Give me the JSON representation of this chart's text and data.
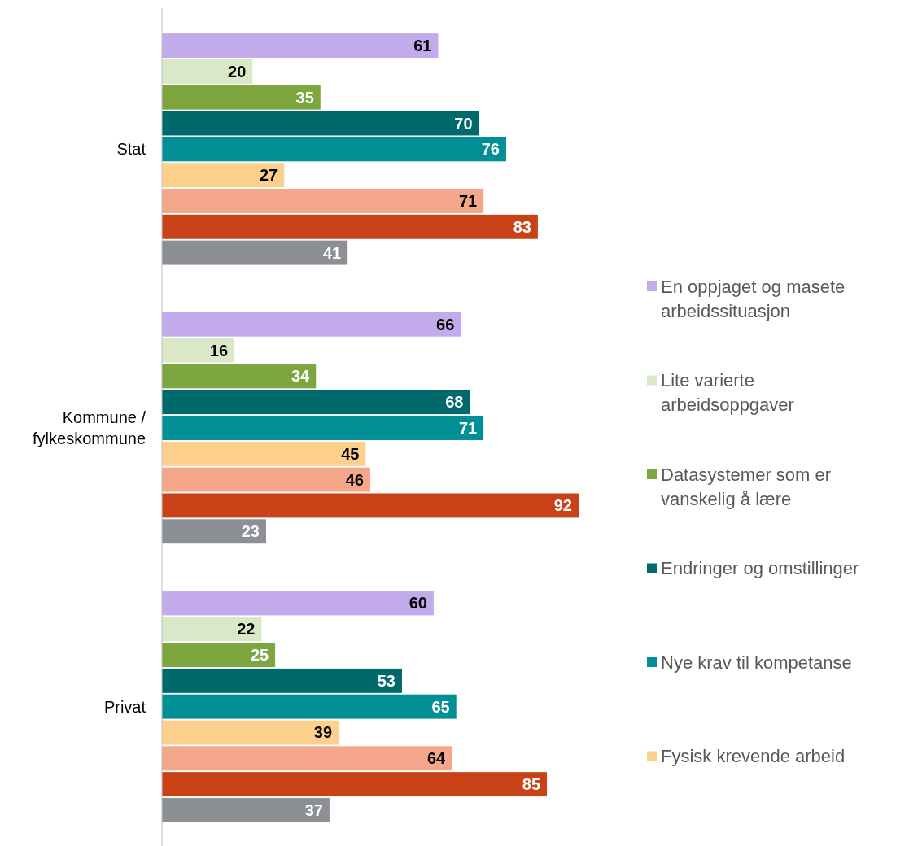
{
  "chart_data": {
    "type": "bar",
    "orientation": "horizontal",
    "categories": [
      "Stat",
      "Kommune / fylkeskommune",
      "Privat"
    ],
    "data_labels": true,
    "legend": "right",
    "series": [
      {
        "name": "En oppjaget og masete arbeidssituasjon",
        "color": "#c3aaeb",
        "values": [
          61,
          66,
          60
        ]
      },
      {
        "name": "Lite varierte arbeidsoppgaver",
        "color": "#d9e8c6",
        "values": [
          20,
          16,
          22
        ]
      },
      {
        "name": "Datasystemer som er vanskelig å lære",
        "color": "#7ea63f",
        "values": [
          35,
          34,
          25
        ]
      },
      {
        "name": "Endringer og omstillinger",
        "color": "#00696b",
        "values": [
          70,
          68,
          53
        ]
      },
      {
        "name": "Nye krav til kompetanse",
        "color": "#008f94",
        "values": [
          76,
          71,
          65
        ]
      },
      {
        "name": "Fysisk krevende arbeid",
        "color": "#fdd08d",
        "values": [
          27,
          45,
          39
        ]
      },
      {
        "color": "#f4a78b",
        "values": [
          71,
          46,
          64
        ]
      },
      {
        "color": "#c94117",
        "values": [
          83,
          92,
          85
        ]
      },
      {
        "color": "#8c8f93",
        "values": [
          41,
          23,
          37
        ]
      }
    ]
  }
}
